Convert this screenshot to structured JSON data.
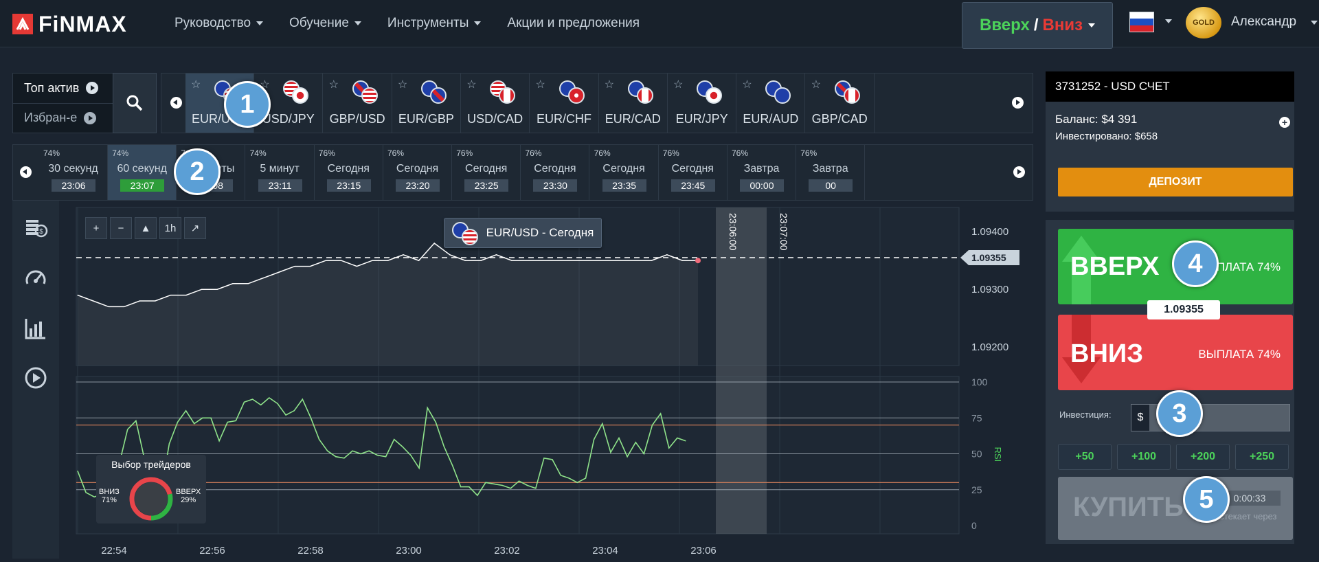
{
  "brand": {
    "logo_text": "FiNMAX",
    "accent": "#e53935"
  },
  "nav": {
    "items": [
      {
        "label": "Руководство",
        "dropdown": true
      },
      {
        "label": "Обучение",
        "dropdown": true
      },
      {
        "label": "Инструменты",
        "dropdown": true
      },
      {
        "label": "Акции и предложения",
        "dropdown": false
      }
    ]
  },
  "header": {
    "mode_button": {
      "up": "Вверх",
      "sep": "/",
      "down": "Вниз"
    },
    "language_flag": "ru-flag",
    "user": {
      "badge": "GOLD",
      "name": "Александр"
    }
  },
  "assets": {
    "modes": [
      {
        "label": "Топ актив"
      },
      {
        "label": "Избран-е"
      }
    ],
    "tabs": [
      {
        "name": "EUR/USD",
        "active": true
      },
      {
        "name": "USD/JPY"
      },
      {
        "name": "GBP/USD"
      },
      {
        "name": "EUR/GBP"
      },
      {
        "name": "USD/CAD"
      },
      {
        "name": "EUR/CHF"
      },
      {
        "name": "EUR/CAD"
      },
      {
        "name": "EUR/JPY"
      },
      {
        "name": "EUR/AUD"
      },
      {
        "name": "GBP/CAD"
      }
    ]
  },
  "expiries": [
    {
      "pct": "74%",
      "label": "30 секунд",
      "time": "23:06"
    },
    {
      "pct": "74%",
      "label": "60 секунд",
      "time": "23:07",
      "active": true
    },
    {
      "pct": "74%",
      "label": "2 минуты",
      "time": "23:08"
    },
    {
      "pct": "74%",
      "label": "5 минут",
      "time": "23:11"
    },
    {
      "pct": "76%",
      "label": "Сегодня",
      "time": "23:15"
    },
    {
      "pct": "76%",
      "label": "Сегодня",
      "time": "23:20"
    },
    {
      "pct": "76%",
      "label": "Сегодня",
      "time": "23:25"
    },
    {
      "pct": "76%",
      "label": "Сегодня",
      "time": "23:30"
    },
    {
      "pct": "76%",
      "label": "Сегодня",
      "time": "23:35"
    },
    {
      "pct": "76%",
      "label": "Сегодня",
      "time": "23:45"
    },
    {
      "pct": "76%",
      "label": "Завтра",
      "time": "00:00"
    },
    {
      "pct": "76%",
      "label": "Завтра",
      "time": "00"
    }
  ],
  "chart": {
    "pair_label": "EUR/USD - Сегодня",
    "zoom_tools": [
      "+",
      "−",
      "▲",
      "1h",
      "↗"
    ],
    "price_ticks": [
      "1.09400",
      "1.09300",
      "1.09200"
    ],
    "current_price": "1.09355",
    "rsi_ticks": [
      "100",
      "75",
      "50",
      "25",
      "0"
    ],
    "rsi_label": "RSI",
    "time_ticks": [
      "22:54",
      "22:56",
      "22:58",
      "23:00",
      "23:02",
      "23:04",
      "23:06"
    ],
    "expiry_markers": [
      "23:06:00",
      "23:07:00"
    ],
    "traders": {
      "title": "Выбор трейдеров",
      "down_label": "ВНИЗ",
      "down_pct": "71%",
      "up_label": "ВВЕРХ",
      "up_pct": "29%",
      "down_share": 0.71,
      "up_share": 0.29
    },
    "colors": {
      "price_line": "#ffffff",
      "rsi_line": "#8fe38a",
      "rsi_bands": "#d9825b",
      "expiry_zone": "#585f67"
    }
  },
  "chart_data": [
    {
      "type": "line",
      "title": "EUR/USD - Сегодня",
      "ylim": [
        1.0918,
        1.0943
      ],
      "x_range": [
        "22:54",
        "23:06"
      ],
      "series": [
        {
          "values": [
            1.0929,
            1.0928,
            1.0927,
            1.0927,
            1.0928,
            1.0928,
            1.0929,
            1.0929,
            1.093,
            1.093,
            1.0931,
            1.0931,
            1.0932,
            1.0933,
            1.0934,
            1.0934,
            1.0935,
            1.0935,
            1.0934,
            1.0935,
            1.0935,
            1.0936,
            1.0935,
            1.0938,
            1.0936,
            1.0935,
            1.0935,
            1.0936,
            1.0935,
            1.0935,
            1.0935,
            1.0935,
            1.0935,
            1.0935,
            1.0935,
            1.0935,
            1.0935,
            1.0935,
            1.0936,
            1.0935,
            1.0935
          ]
        }
      ],
      "hline": 1.09355
    },
    {
      "type": "line",
      "ylabel": "RSI",
      "ylim": [
        0,
        100
      ],
      "bands": [
        70,
        30
      ],
      "series": [
        {
          "values": [
            38,
            23,
            20,
            22,
            30,
            43,
            67,
            73,
            47,
            38,
            23,
            57,
            72,
            80,
            71,
            75,
            75,
            59,
            72,
            73,
            86,
            88,
            84,
            89,
            85,
            77,
            80,
            88,
            75,
            60,
            52,
            48,
            47,
            52,
            50,
            52,
            49,
            48,
            60,
            55,
            49,
            40,
            82,
            72,
            55,
            42,
            27,
            27,
            21,
            30,
            29,
            28,
            26,
            31,
            28,
            26,
            47,
            46,
            35,
            33,
            30,
            33,
            60,
            71,
            51,
            61,
            48,
            58,
            50,
            70,
            78,
            54,
            61,
            59
          ]
        }
      ]
    }
  ],
  "account": {
    "title": "3731252 - USD СЧЕТ",
    "balance_label": "Баланс:",
    "balance": "$4 391",
    "invested_label": "Инвестировано:",
    "invested": "$658",
    "deposit_label": "ДЕПОЗИТ"
  },
  "trade": {
    "up_label": "ВВЕРХ",
    "up_payout": "ВЫПЛАТА 74%",
    "price": "1.09355",
    "down_label": "ВНИЗ",
    "down_payout": "ВЫПЛАТА 74%",
    "invest_label": "Инвестиция:",
    "currency_symbol": "$",
    "invest_value": "",
    "quick_amounts": [
      "+50",
      "+100",
      "+200",
      "+250"
    ],
    "buy_label": "КУПИТЬ",
    "timer": "0:00:33",
    "expire_text": "истекает через"
  },
  "steps": [
    "1",
    "2",
    "3",
    "4",
    "5"
  ]
}
